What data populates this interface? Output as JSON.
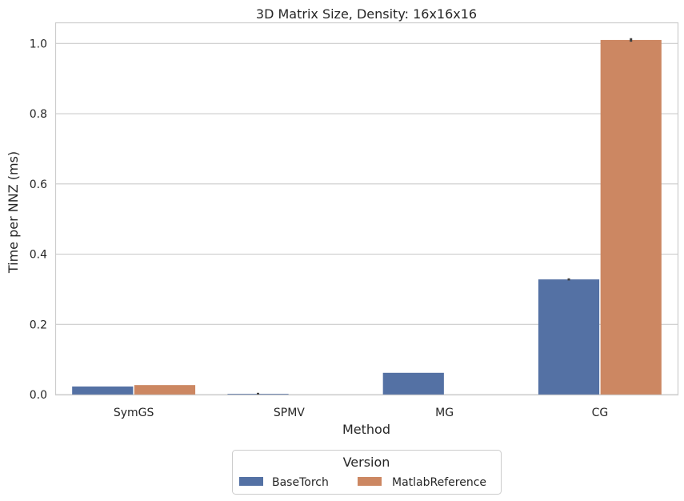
{
  "chart_data": {
    "type": "bar",
    "title": "3D Matrix Size, Density: 16x16x16",
    "xlabel": "Method",
    "ylabel": "Time per NNZ (ms)",
    "categories": [
      "SymGS",
      "SPMV",
      "MG",
      "CG"
    ],
    "ylim": [
      0,
      1.06
    ],
    "yticks": [
      0.0,
      0.2,
      0.4,
      0.6,
      0.8,
      1.0
    ],
    "ytick_labels": [
      "0.0",
      "0.2",
      "0.4",
      "0.6",
      "0.8",
      "1.0"
    ],
    "grid": "horizontal",
    "series": [
      {
        "name": "BaseTorch",
        "values": [
          0.023,
          0.002,
          0.062,
          0.328
        ],
        "errors": [
          0.0,
          0.003,
          0.0,
          0.003
        ],
        "color": "#5471a4"
      },
      {
        "name": "MatlabReference",
        "values": [
          0.027,
          0.0,
          0.0,
          1.01
        ],
        "errors": [
          0.0,
          0.0,
          0.0,
          0.005
        ],
        "color": "#cc8762"
      }
    ],
    "legend": {
      "title": "Version",
      "placement": "below-center"
    }
  }
}
